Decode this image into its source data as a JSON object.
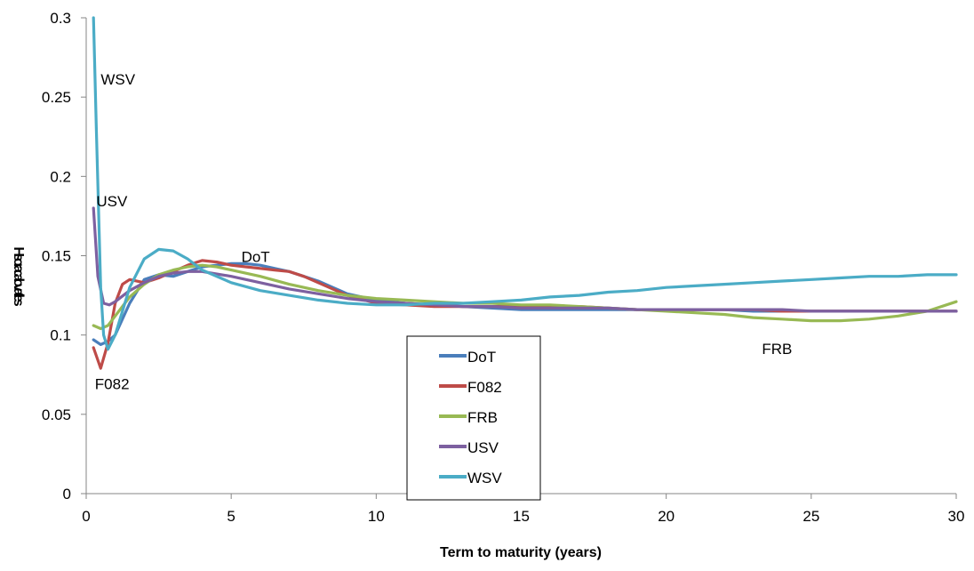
{
  "chart_data": {
    "type": "line",
    "title": "",
    "xlabel": "Term to maturity (years)",
    "ylabel": "Hsoracalovatiles",
    "xlim": [
      0,
      30
    ],
    "ylim": [
      0,
      0.3
    ],
    "xticks": [
      0,
      5,
      10,
      15,
      20,
      25,
      30
    ],
    "yticks": [
      0,
      0.05,
      0.1,
      0.15,
      0.2,
      0.25,
      0.3
    ],
    "xtick_labels": [
      "0",
      "5",
      "10",
      "15",
      "20",
      "25",
      "30"
    ],
    "ytick_labels": [
      "0",
      "0.05",
      "0.1",
      "0.15",
      "0.2",
      "0.25",
      "0.3"
    ],
    "grid": false,
    "legend_position": "bottom-center",
    "series": [
      {
        "name": "DoT",
        "color": "#4a7ebb",
        "x": [
          0.25,
          0.5,
          0.75,
          1.0,
          1.5,
          2,
          2.5,
          3,
          3.5,
          4,
          4.5,
          5,
          5.5,
          6,
          6.5,
          7,
          7.5,
          8,
          9,
          10,
          11,
          12,
          13,
          14,
          15,
          16,
          17,
          18,
          19,
          20,
          21,
          22,
          23,
          24,
          25,
          26,
          27,
          28,
          29,
          30
        ],
        "y": [
          0.097,
          0.094,
          0.096,
          0.1,
          0.12,
          0.135,
          0.138,
          0.137,
          0.14,
          0.143,
          0.144,
          0.145,
          0.145,
          0.144,
          0.142,
          0.14,
          0.137,
          0.134,
          0.126,
          0.122,
          0.12,
          0.119,
          0.118,
          0.117,
          0.116,
          0.116,
          0.116,
          0.116,
          0.116,
          0.116,
          0.116,
          0.116,
          0.115,
          0.115,
          0.115,
          0.115,
          0.115,
          0.115,
          0.115,
          0.115
        ]
      },
      {
        "name": "F082",
        "color": "#be4b48",
        "x": [
          0.25,
          0.5,
          0.75,
          1.0,
          1.25,
          1.5,
          2,
          2.5,
          3,
          3.5,
          4,
          4.5,
          5,
          5.5,
          6,
          6.5,
          7,
          7.5,
          8,
          9,
          10,
          11,
          12,
          13,
          14,
          15,
          16,
          17,
          18,
          19,
          20,
          21,
          22,
          23,
          24,
          25,
          26,
          27,
          28,
          29,
          30
        ],
        "y": [
          0.092,
          0.079,
          0.095,
          0.12,
          0.132,
          0.135,
          0.133,
          0.136,
          0.14,
          0.144,
          0.147,
          0.146,
          0.144,
          0.143,
          0.142,
          0.141,
          0.14,
          0.137,
          0.133,
          0.125,
          0.12,
          0.119,
          0.118,
          0.118,
          0.118,
          0.118,
          0.118,
          0.118,
          0.117,
          0.116,
          0.116,
          0.116,
          0.116,
          0.116,
          0.115,
          0.115,
          0.115,
          0.115,
          0.115,
          0.115,
          0.115
        ]
      },
      {
        "name": "FRB",
        "color": "#98b954",
        "x": [
          0.25,
          0.5,
          0.75,
          1.0,
          1.5,
          2,
          2.5,
          3,
          3.5,
          4,
          4.5,
          5,
          6,
          7,
          8,
          9,
          10,
          11,
          12,
          13,
          14,
          15,
          16,
          17,
          18,
          19,
          20,
          21,
          22,
          23,
          24,
          25,
          26,
          27,
          28,
          29,
          30
        ],
        "y": [
          0.106,
          0.104,
          0.106,
          0.112,
          0.124,
          0.132,
          0.138,
          0.141,
          0.143,
          0.144,
          0.143,
          0.141,
          0.137,
          0.132,
          0.128,
          0.125,
          0.123,
          0.122,
          0.121,
          0.12,
          0.12,
          0.119,
          0.119,
          0.118,
          0.117,
          0.116,
          0.115,
          0.114,
          0.113,
          0.111,
          0.11,
          0.109,
          0.109,
          0.11,
          0.112,
          0.115,
          0.121
        ]
      },
      {
        "name": "USV",
        "color": "#7d60a0",
        "x": [
          0.25,
          0.4,
          0.6,
          0.8,
          1.0,
          1.5,
          2,
          2.5,
          3,
          3.5,
          4,
          5,
          6,
          7,
          8,
          9,
          10,
          11,
          12,
          13,
          14,
          15,
          16,
          17,
          18,
          19,
          20,
          21,
          22,
          23,
          24,
          25,
          26,
          27,
          28,
          29,
          30
        ],
        "y": [
          0.18,
          0.137,
          0.12,
          0.119,
          0.121,
          0.128,
          0.133,
          0.137,
          0.139,
          0.14,
          0.14,
          0.137,
          0.133,
          0.129,
          0.126,
          0.123,
          0.121,
          0.12,
          0.119,
          0.118,
          0.118,
          0.117,
          0.117,
          0.117,
          0.117,
          0.116,
          0.116,
          0.116,
          0.116,
          0.116,
          0.116,
          0.115,
          0.115,
          0.115,
          0.115,
          0.115,
          0.115
        ]
      },
      {
        "name": "WSV",
        "color": "#4bacc6",
        "x": [
          0.25,
          0.35,
          0.5,
          0.6,
          0.75,
          1.0,
          1.25,
          1.5,
          2,
          2.5,
          3,
          3.5,
          4,
          5,
          6,
          7,
          8,
          9,
          10,
          11,
          12,
          13,
          14,
          15,
          16,
          17,
          18,
          19,
          20,
          21,
          22,
          23,
          24,
          25,
          26,
          27,
          28,
          29,
          30
        ],
        "y": [
          0.3,
          0.23,
          0.13,
          0.1,
          0.091,
          0.1,
          0.115,
          0.13,
          0.148,
          0.154,
          0.153,
          0.148,
          0.141,
          0.133,
          0.128,
          0.125,
          0.122,
          0.12,
          0.119,
          0.119,
          0.12,
          0.12,
          0.121,
          0.122,
          0.124,
          0.125,
          0.127,
          0.128,
          0.13,
          0.131,
          0.132,
          0.133,
          0.134,
          0.135,
          0.136,
          0.137,
          0.137,
          0.138,
          0.138
        ]
      }
    ],
    "annotations": [
      {
        "text": "WSV",
        "x": 0.5,
        "y": 0.258
      },
      {
        "text": "USV",
        "x": 0.35,
        "y": 0.181
      },
      {
        "text": "DoT",
        "x": 5.35,
        "y": 0.146
      },
      {
        "text": "F082",
        "x": 0.3,
        "y": 0.066
      },
      {
        "text": "FRB",
        "x": 23.3,
        "y": 0.088
      }
    ]
  }
}
